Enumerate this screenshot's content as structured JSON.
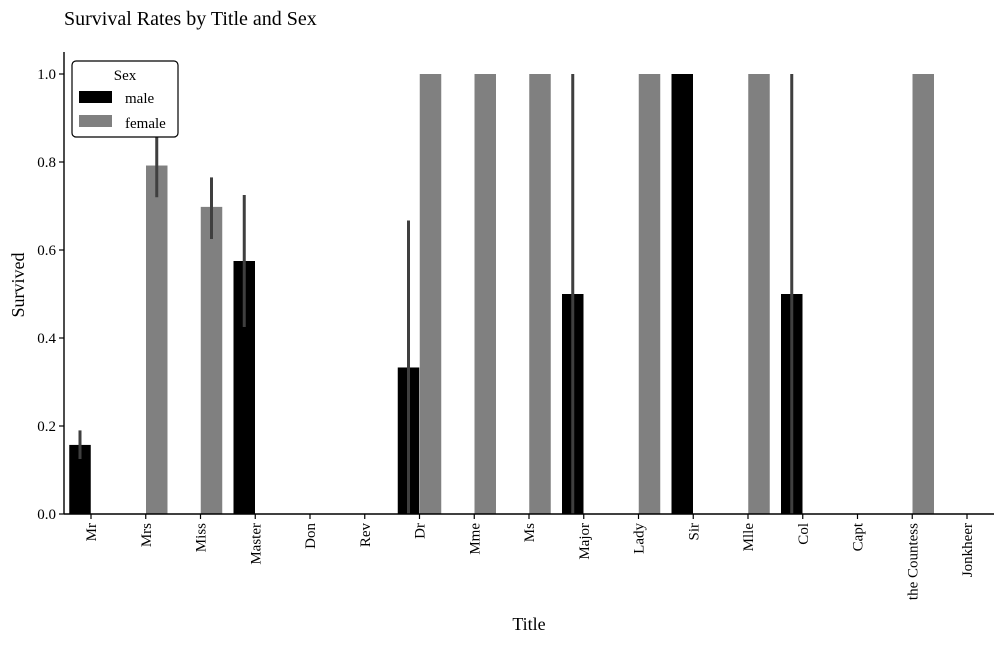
{
  "chart_data": {
    "type": "bar",
    "title": "Survival Rates by Title and Sex",
    "xlabel": "Title",
    "ylabel": "Survived",
    "ylim": [
      0,
      1.05
    ],
    "yticks": [
      "0.0",
      "0.2",
      "0.4",
      "0.6",
      "0.8",
      "1.0"
    ],
    "categories": [
      "Mr",
      "Mrs",
      "Miss",
      "Master",
      "Don",
      "Rev",
      "Dr",
      "Mme",
      "Ms",
      "Major",
      "Lady",
      "Sir",
      "Mlle",
      "Col",
      "Capt",
      "the Countess",
      "Jonkheer"
    ],
    "legend": {
      "title": "Sex",
      "placement": "top-left"
    },
    "series": [
      {
        "name": "male",
        "color": "#000000",
        "values": [
          0.157,
          null,
          null,
          0.575,
          0.0,
          0.0,
          0.333,
          null,
          null,
          0.5,
          null,
          1.0,
          null,
          0.5,
          0.0,
          null,
          0.0
        ],
        "ci_low": [
          0.125,
          null,
          null,
          0.425,
          null,
          null,
          0.0,
          null,
          null,
          0.0,
          null,
          null,
          null,
          0.0,
          null,
          null,
          null
        ],
        "ci_high": [
          0.19,
          null,
          null,
          0.725,
          null,
          null,
          0.667,
          null,
          null,
          1.0,
          null,
          null,
          null,
          1.0,
          null,
          null,
          null
        ]
      },
      {
        "name": "female",
        "color": "#808080",
        "values": [
          null,
          0.792,
          0.698,
          null,
          null,
          null,
          1.0,
          1.0,
          1.0,
          null,
          1.0,
          null,
          1.0,
          null,
          null,
          1.0,
          null
        ],
        "ci_low": [
          null,
          0.72,
          0.625,
          null,
          null,
          null,
          null,
          null,
          null,
          null,
          null,
          null,
          null,
          null,
          null,
          null,
          null
        ],
        "ci_high": [
          null,
          0.87,
          0.765,
          null,
          null,
          null,
          null,
          null,
          null,
          null,
          null,
          null,
          null,
          null,
          null,
          null,
          null
        ]
      }
    ],
    "errorbar_color": "#3f3f3f",
    "grid": false
  }
}
